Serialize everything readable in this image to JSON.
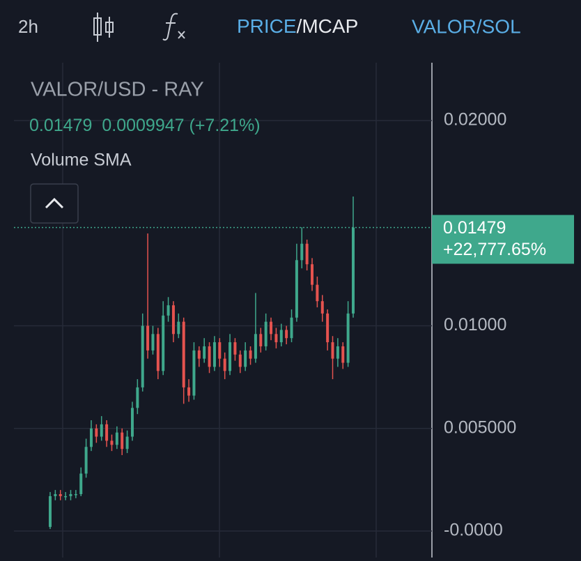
{
  "toolbar": {
    "interval": "2h",
    "price_mode": "PRICE",
    "mode_separator": "/",
    "mcap_mode": "MCAP",
    "pair": "VALOR/SOL"
  },
  "chart_data": {
    "type": "candlestick",
    "title": "VALOR/USD - RAY",
    "last_value": 0.01479,
    "change_label": "0.0009947 (+7.21%)",
    "price_tag_change": "+22,777.65%",
    "indicator": "Volume SMA",
    "up_color": "#3fa88c",
    "down_color": "#e5534f",
    "ylim": [
      -0.00129,
      0.02282
    ],
    "yticks": [
      {
        "value": 0,
        "label": "-0.0000"
      },
      {
        "value": 0.005,
        "label": "0.005000"
      },
      {
        "value": 0.01,
        "label": "0.01000"
      },
      {
        "value": 0.02,
        "label": "0.02000"
      }
    ],
    "grid": true,
    "open": [
      0.0002,
      0.0017,
      0.0018,
      0.0017,
      0.0017,
      0.0018,
      0.0018,
      0.0028,
      0.0041,
      0.005,
      0.0046,
      0.0052,
      0.0044,
      0.0042,
      0.0048,
      0.004,
      0.0046,
      0.006,
      0.007,
      0.01,
      0.0088,
      0.0096,
      0.0078,
      0.0105,
      0.011,
      0.0096,
      0.0102,
      0.007,
      0.0066,
      0.0088,
      0.0084,
      0.009,
      0.008,
      0.0092,
      0.0084,
      0.0078,
      0.0092,
      0.0086,
      0.008,
      0.0088,
      0.0084,
      0.0096,
      0.009,
      0.0102,
      0.0096,
      0.0092,
      0.0098,
      0.0094,
      0.0104,
      0.0132,
      0.014,
      0.013,
      0.012,
      0.0112,
      0.0106,
      0.0092,
      0.0084,
      0.009,
      0.0082,
      0.0106
    ],
    "high": [
      0.0019,
      0.002,
      0.002,
      0.0019,
      0.002,
      0.002,
      0.0031,
      0.0045,
      0.0054,
      0.0052,
      0.0056,
      0.0054,
      0.0047,
      0.0051,
      0.005,
      0.0049,
      0.0063,
      0.0074,
      0.0106,
      0.0145,
      0.01,
      0.0099,
      0.0112,
      0.0114,
      0.0112,
      0.0106,
      0.0104,
      0.0074,
      0.0092,
      0.009,
      0.0094,
      0.0092,
      0.0095,
      0.0094,
      0.0087,
      0.0096,
      0.0094,
      0.0088,
      0.0092,
      0.009,
      0.0116,
      0.0099,
      0.0106,
      0.0104,
      0.0099,
      0.0101,
      0.01,
      0.0108,
      0.014,
      0.0148,
      0.0142,
      0.0133,
      0.0124,
      0.0115,
      0.0108,
      0.0095,
      0.0094,
      0.0092,
      0.0112,
      0.0163
    ],
    "low": [
      0.0001,
      0.0015,
      0.0015,
      0.0015,
      0.0015,
      0.0016,
      0.0017,
      0.0026,
      0.0039,
      0.0043,
      0.0044,
      0.0041,
      0.0039,
      0.004,
      0.0037,
      0.0038,
      0.0044,
      0.0057,
      0.0068,
      0.0084,
      0.0086,
      0.0074,
      0.0076,
      0.0102,
      0.0092,
      0.0094,
      0.0062,
      0.0063,
      0.0064,
      0.008,
      0.0082,
      0.0077,
      0.0078,
      0.008,
      0.0074,
      0.0076,
      0.0083,
      0.0077,
      0.0078,
      0.0081,
      0.0082,
      0.0087,
      0.0088,
      0.0093,
      0.0089,
      0.009,
      0.0091,
      0.0092,
      0.0102,
      0.0128,
      0.0127,
      0.0117,
      0.0109,
      0.0102,
      0.0088,
      0.0074,
      0.008,
      0.0079,
      0.008,
      0.0104
    ],
    "close": [
      0.0017,
      0.0018,
      0.0017,
      0.0017,
      0.0018,
      0.0018,
      0.0028,
      0.0041,
      0.005,
      0.0046,
      0.0052,
      0.0044,
      0.0042,
      0.0048,
      0.004,
      0.0046,
      0.006,
      0.007,
      0.01,
      0.0088,
      0.0096,
      0.0078,
      0.0105,
      0.011,
      0.0096,
      0.0102,
      0.007,
      0.0066,
      0.0088,
      0.0084,
      0.009,
      0.008,
      0.0092,
      0.0084,
      0.0078,
      0.0092,
      0.0086,
      0.008,
      0.0088,
      0.0084,
      0.0096,
      0.009,
      0.0102,
      0.0096,
      0.0092,
      0.0098,
      0.0094,
      0.0104,
      0.0132,
      0.014,
      0.013,
      0.012,
      0.0112,
      0.0106,
      0.0092,
      0.0084,
      0.009,
      0.0082,
      0.0106,
      0.01479
    ]
  }
}
